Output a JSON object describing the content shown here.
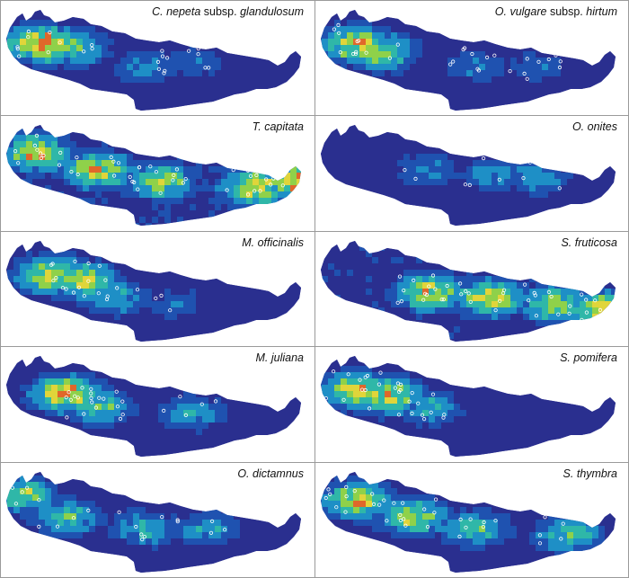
{
  "panels": [
    {
      "id": "c-nepeta",
      "label": {
        "genus": "C.",
        "species": "nepeta",
        "rank": "subsp.",
        "infra": "glandulosum"
      },
      "hotspots": [
        [
          0.12,
          0.35,
          1.0
        ],
        [
          0.22,
          0.38,
          0.7
        ],
        [
          0.45,
          0.55,
          0.5
        ],
        [
          0.62,
          0.5,
          0.4
        ]
      ],
      "base": 0.15,
      "points": 25
    },
    {
      "id": "o-vulgare",
      "label": {
        "genus": "O.",
        "species": "vulgare",
        "rank": "subsp.",
        "infra": "hirtum"
      },
      "hotspots": [
        [
          0.12,
          0.35,
          0.9
        ],
        [
          0.2,
          0.42,
          0.8
        ],
        [
          0.5,
          0.55,
          0.45
        ],
        [
          0.7,
          0.55,
          0.4
        ]
      ],
      "base": 0.12,
      "points": 30
    },
    {
      "id": "t-capitata",
      "label": {
        "genus": "T.",
        "species": "capitata",
        "rank": "",
        "infra": ""
      },
      "hotspots": [
        [
          0.1,
          0.3,
          0.9
        ],
        [
          0.3,
          0.45,
          0.9
        ],
        [
          0.5,
          0.55,
          0.8
        ],
        [
          0.8,
          0.6,
          0.9
        ],
        [
          0.95,
          0.55,
          1.0
        ]
      ],
      "base": 0.55,
      "points": 45
    },
    {
      "id": "o-onites",
      "label": {
        "genus": "O.",
        "species": "onites",
        "rank": "",
        "infra": ""
      },
      "hotspots": [
        [
          0.35,
          0.45,
          0.5
        ],
        [
          0.55,
          0.5,
          0.5
        ],
        [
          0.7,
          0.5,
          0.55
        ]
      ],
      "base": 0.2,
      "points": 10
    },
    {
      "id": "m-officinalis",
      "label": {
        "genus": "M.",
        "species": "officinalis",
        "rank": "",
        "infra": ""
      },
      "hotspots": [
        [
          0.15,
          0.35,
          0.9
        ],
        [
          0.25,
          0.4,
          0.85
        ],
        [
          0.35,
          0.55,
          0.6
        ],
        [
          0.55,
          0.6,
          0.4
        ]
      ],
      "base": 0.3,
      "points": 22
    },
    {
      "id": "s-fruticosa",
      "label": {
        "genus": "S.",
        "species": "fruticosa",
        "rank": "",
        "infra": ""
      },
      "hotspots": [
        [
          0.35,
          0.5,
          0.9
        ],
        [
          0.55,
          0.55,
          0.9
        ],
        [
          0.75,
          0.6,
          0.8
        ],
        [
          0.9,
          0.65,
          0.9
        ]
      ],
      "base": 0.45,
      "points": 40
    },
    {
      "id": "m-juliana",
      "label": {
        "genus": "M.",
        "species": "juliana",
        "rank": "",
        "infra": ""
      },
      "hotspots": [
        [
          0.2,
          0.38,
          0.95
        ],
        [
          0.3,
          0.5,
          0.7
        ],
        [
          0.6,
          0.55,
          0.55
        ]
      ],
      "base": 0.35,
      "points": 25
    },
    {
      "id": "s-pomifera",
      "label": {
        "genus": "S.",
        "species": "pomifera",
        "rank": "",
        "infra": ""
      },
      "hotspots": [
        [
          0.12,
          0.35,
          0.9
        ],
        [
          0.22,
          0.4,
          0.9
        ],
        [
          0.35,
          0.5,
          0.6
        ]
      ],
      "base": 0.25,
      "points": 28
    },
    {
      "id": "o-dictamnus",
      "label": {
        "genus": "O.",
        "species": "dictamnus",
        "rank": "",
        "infra": ""
      },
      "hotspots": [
        [
          0.05,
          0.25,
          0.8
        ],
        [
          0.2,
          0.45,
          0.7
        ],
        [
          0.45,
          0.55,
          0.6
        ],
        [
          0.65,
          0.55,
          0.55
        ]
      ],
      "base": 0.4,
      "points": 20
    },
    {
      "id": "s-thymbra",
      "label": {
        "genus": "S.",
        "species": "thymbra",
        "rank": "",
        "infra": ""
      },
      "hotspots": [
        [
          0.12,
          0.3,
          0.9
        ],
        [
          0.3,
          0.45,
          0.8
        ],
        [
          0.5,
          0.55,
          0.7
        ],
        [
          0.8,
          0.6,
          0.7
        ]
      ],
      "base": 0.4,
      "points": 35
    }
  ]
}
